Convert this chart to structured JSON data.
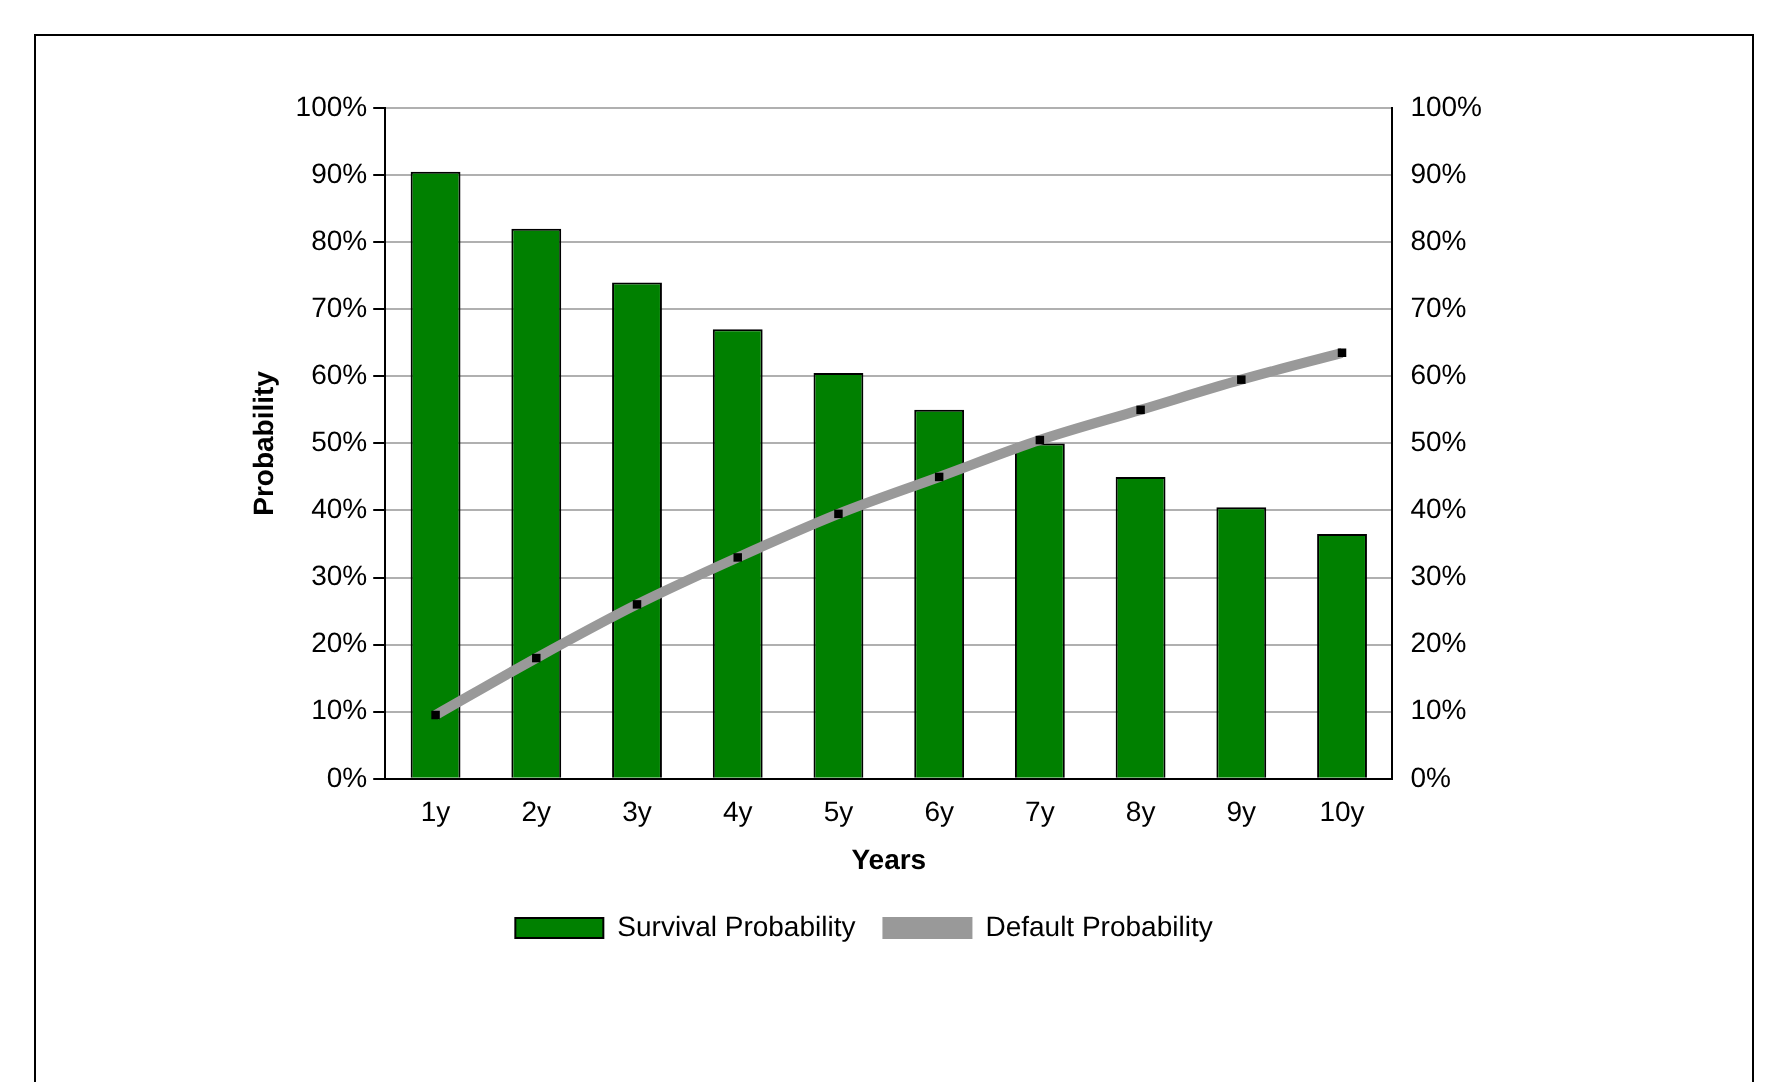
{
  "chart_data": {
    "type": "bar",
    "xlabel": "Years",
    "ylabel": "Probability",
    "categories": [
      "1y",
      "2y",
      "3y",
      "4y",
      "5y",
      "6y",
      "7y",
      "8y",
      "9y",
      "10y"
    ],
    "series": [
      {
        "name": "Survival Probability",
        "color": "#008000",
        "values": [
          90.5,
          82,
          74,
          67,
          60.5,
          55,
          50,
          45,
          40.5,
          36.5
        ]
      },
      {
        "name": "Default Probability",
        "type": "line",
        "color": "#999999",
        "marker": "square",
        "values": [
          9.5,
          18,
          26,
          33,
          39.5,
          45,
          50.5,
          55,
          59.5,
          63.5
        ]
      }
    ],
    "ylim": [
      0,
      100
    ],
    "yticks": [
      {
        "value": 0,
        "label": "0%"
      },
      {
        "value": 10,
        "label": "10%"
      },
      {
        "value": 20,
        "label": "20%"
      },
      {
        "value": 30,
        "label": "30%"
      },
      {
        "value": 40,
        "label": "40%"
      },
      {
        "value": 50,
        "label": "50%"
      },
      {
        "value": 60,
        "label": "60%"
      },
      {
        "value": 70,
        "label": "70%"
      },
      {
        "value": 80,
        "label": "80%"
      },
      {
        "value": 90,
        "label": "90%"
      },
      {
        "value": 100,
        "label": "100%"
      }
    ],
    "y2lim": [
      0,
      100
    ],
    "y2ticks": [
      {
        "value": 0,
        "label": "0%"
      },
      {
        "value": 10,
        "label": "10%"
      },
      {
        "value": 20,
        "label": "20%"
      },
      {
        "value": 30,
        "label": "30%"
      },
      {
        "value": 40,
        "label": "40%"
      },
      {
        "value": 50,
        "label": "50%"
      },
      {
        "value": 60,
        "label": "60%"
      },
      {
        "value": 70,
        "label": "70%"
      },
      {
        "value": 80,
        "label": "80%"
      },
      {
        "value": 90,
        "label": "90%"
      },
      {
        "value": 100,
        "label": "100%"
      }
    ],
    "grid": "y",
    "legend": "bottom"
  }
}
